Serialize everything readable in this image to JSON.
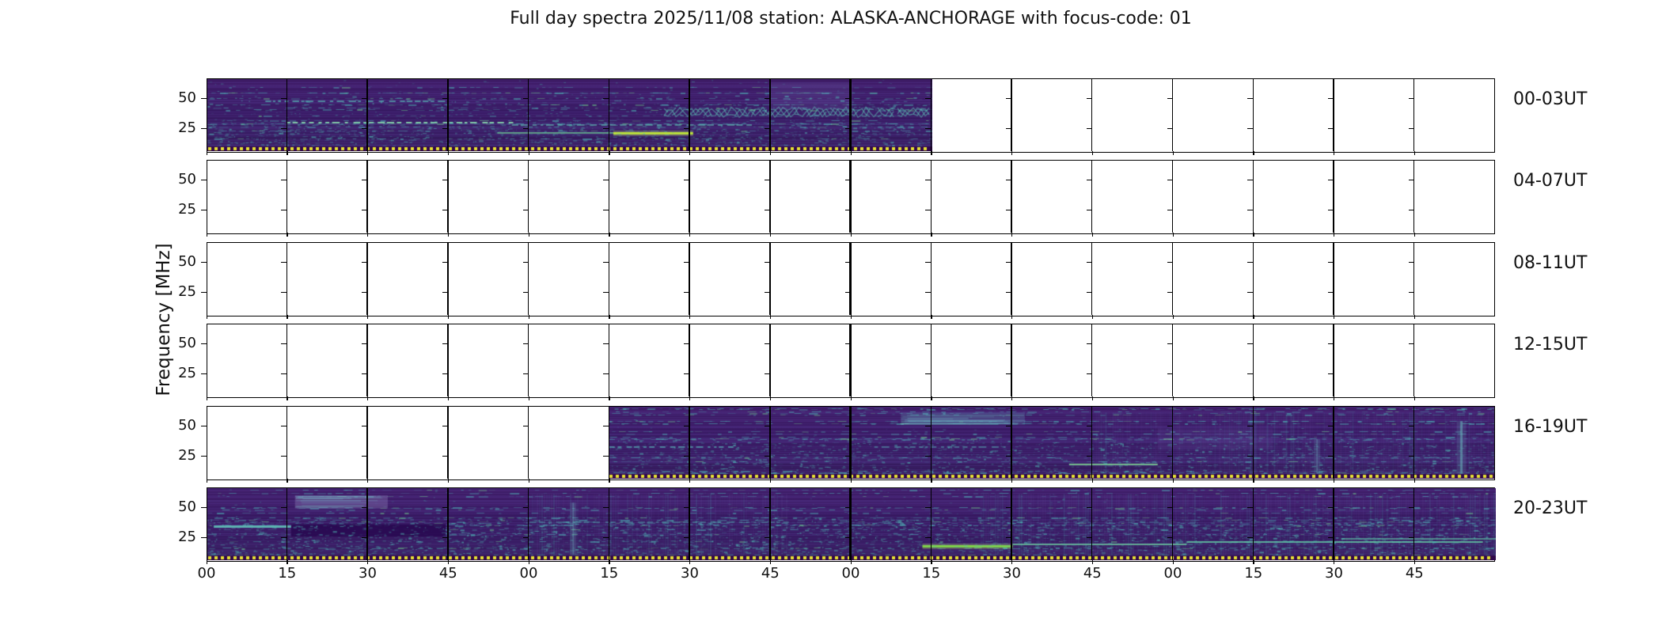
{
  "title": "Full day spectra 2025/11/08 station: ALASKA-ANCHORAGE with focus-code: 01",
  "axes": {
    "ylabel": "Frequency [MHz]",
    "ytick_labels": [
      "50",
      "25"
    ],
    "xtick_labels": [
      "00",
      "15",
      "30",
      "45",
      "00",
      "15",
      "30",
      "45",
      "00",
      "15",
      "30",
      "45",
      "00",
      "15",
      "30",
      "45"
    ]
  },
  "colors": {
    "background": "#ffffff",
    "axis": "#000000",
    "spectrogram_base": "#3e1e6c",
    "streak_teal": "#4ebab8",
    "streak_green": "#6ed28c",
    "bright_chartreuse": "#b9df3b",
    "dotted_line_yellow": "#e6e234"
  },
  "chart_data": {
    "type": "heatmap",
    "subtype": "solar-radio-spectrogram",
    "title": "Full day spectra 2025/11/08 station: ALASKA-ANCHORAGE with focus-code: 01",
    "date": "2025/11/08",
    "station": "ALASKA-ANCHORAGE",
    "focus_code": "01",
    "colormap": "viridis",
    "legend": "none",
    "grid": "off",
    "x_axis": {
      "tick_labels": [
        "00",
        "15",
        "30",
        "45",
        "00",
        "15",
        "30",
        "45",
        "00",
        "15",
        "30",
        "45",
        "00",
        "15",
        "30",
        "45"
      ],
      "units": "minutes past each hour",
      "slabs_per_row": 16,
      "minutes_per_slab": 15,
      "hours_per_row": 4
    },
    "y_axis": {
      "label": "Frequency [MHz]",
      "ticks": [
        50,
        25
      ]
    },
    "rows": [
      {
        "label": "00-03UT",
        "time_range": "00:00-04:00 UT",
        "has_data": true,
        "data_start_slab": 0,
        "data_end_slab": 9,
        "data_time_range": "00:00-02:15 UT"
      },
      {
        "label": "04-07UT",
        "time_range": "04:00-08:00 UT",
        "has_data": false,
        "data_start_slab": -1,
        "data_end_slab": -1,
        "data_time_range": ""
      },
      {
        "label": "08-11UT",
        "time_range": "08:00-12:00 UT",
        "has_data": false,
        "data_start_slab": -1,
        "data_end_slab": -1,
        "data_time_range": ""
      },
      {
        "label": "12-15UT",
        "time_range": "12:00-16:00 UT",
        "has_data": false,
        "data_start_slab": -1,
        "data_end_slab": -1,
        "data_time_range": ""
      },
      {
        "label": "16-19UT",
        "time_range": "16:00-20:00 UT",
        "has_data": true,
        "data_start_slab": 5,
        "data_end_slab": 16,
        "data_time_range": "17:15-20:00 UT"
      },
      {
        "label": "20-23UT",
        "time_range": "20:00-24:00 UT",
        "has_data": true,
        "data_start_slab": 0,
        "data_end_slab": 16,
        "data_time_range": "20:00-24:00 UT"
      }
    ]
  }
}
